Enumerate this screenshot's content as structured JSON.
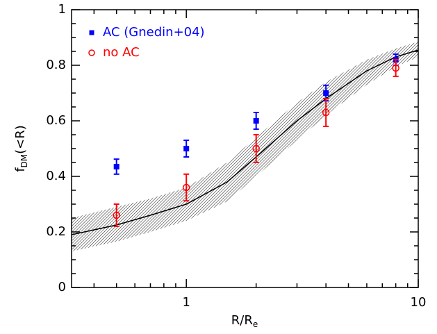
{
  "chart_data": {
    "type": "scatter",
    "xlabel": {
      "main": "R/R",
      "sub": "e"
    },
    "ylabel": {
      "main": "f",
      "sub": "DM",
      "tail": "(<R)"
    },
    "xscale": "log",
    "xlim": [
      0.32,
      10
    ],
    "xticks": [
      1,
      10
    ],
    "xminorticks": [
      0.4,
      0.5,
      0.6,
      0.7,
      0.8,
      0.9,
      2,
      3,
      4,
      5,
      6,
      7,
      8,
      9
    ],
    "ylim": [
      0,
      1
    ],
    "yticks": [
      0,
      0.2,
      0.4,
      0.6,
      0.8,
      1
    ],
    "yminorticks": [
      0.05,
      0.1,
      0.15,
      0.25,
      0.3,
      0.35,
      0.45,
      0.5,
      0.55,
      0.65,
      0.7,
      0.75,
      0.85,
      0.9,
      0.95
    ],
    "legend": "upper left",
    "series": [
      {
        "name": "AC (Gnedin+04)",
        "color": "#0000ff",
        "marker": "filled-square",
        "x": [
          0.5,
          1,
          2,
          4,
          8
        ],
        "values": [
          0.435,
          0.5,
          0.6,
          0.7,
          0.82
        ],
        "errors": [
          0.027,
          0.03,
          0.03,
          0.028,
          0.02
        ]
      },
      {
        "name": "no AC",
        "color": "#ff0000",
        "marker": "open-circle",
        "x": [
          0.5,
          1,
          2,
          4,
          8
        ],
        "values": [
          0.26,
          0.36,
          0.5,
          0.63,
          0.79
        ],
        "errors": [
          0.04,
          0.048,
          0.05,
          0.05,
          0.03
        ]
      }
    ],
    "model": {
      "color": "#000000",
      "x": [
        0.32,
        0.5,
        0.7,
        1,
        1.5,
        2,
        3,
        4,
        6,
        8,
        10
      ],
      "values": [
        0.19,
        0.225,
        0.26,
        0.3,
        0.38,
        0.47,
        0.6,
        0.68,
        0.78,
        0.83,
        0.855
      ],
      "lower": [
        0.13,
        0.165,
        0.2,
        0.24,
        0.31,
        0.4,
        0.53,
        0.62,
        0.73,
        0.795,
        0.83
      ],
      "upper": [
        0.25,
        0.29,
        0.32,
        0.36,
        0.45,
        0.54,
        0.665,
        0.74,
        0.82,
        0.86,
        0.885
      ]
    }
  }
}
